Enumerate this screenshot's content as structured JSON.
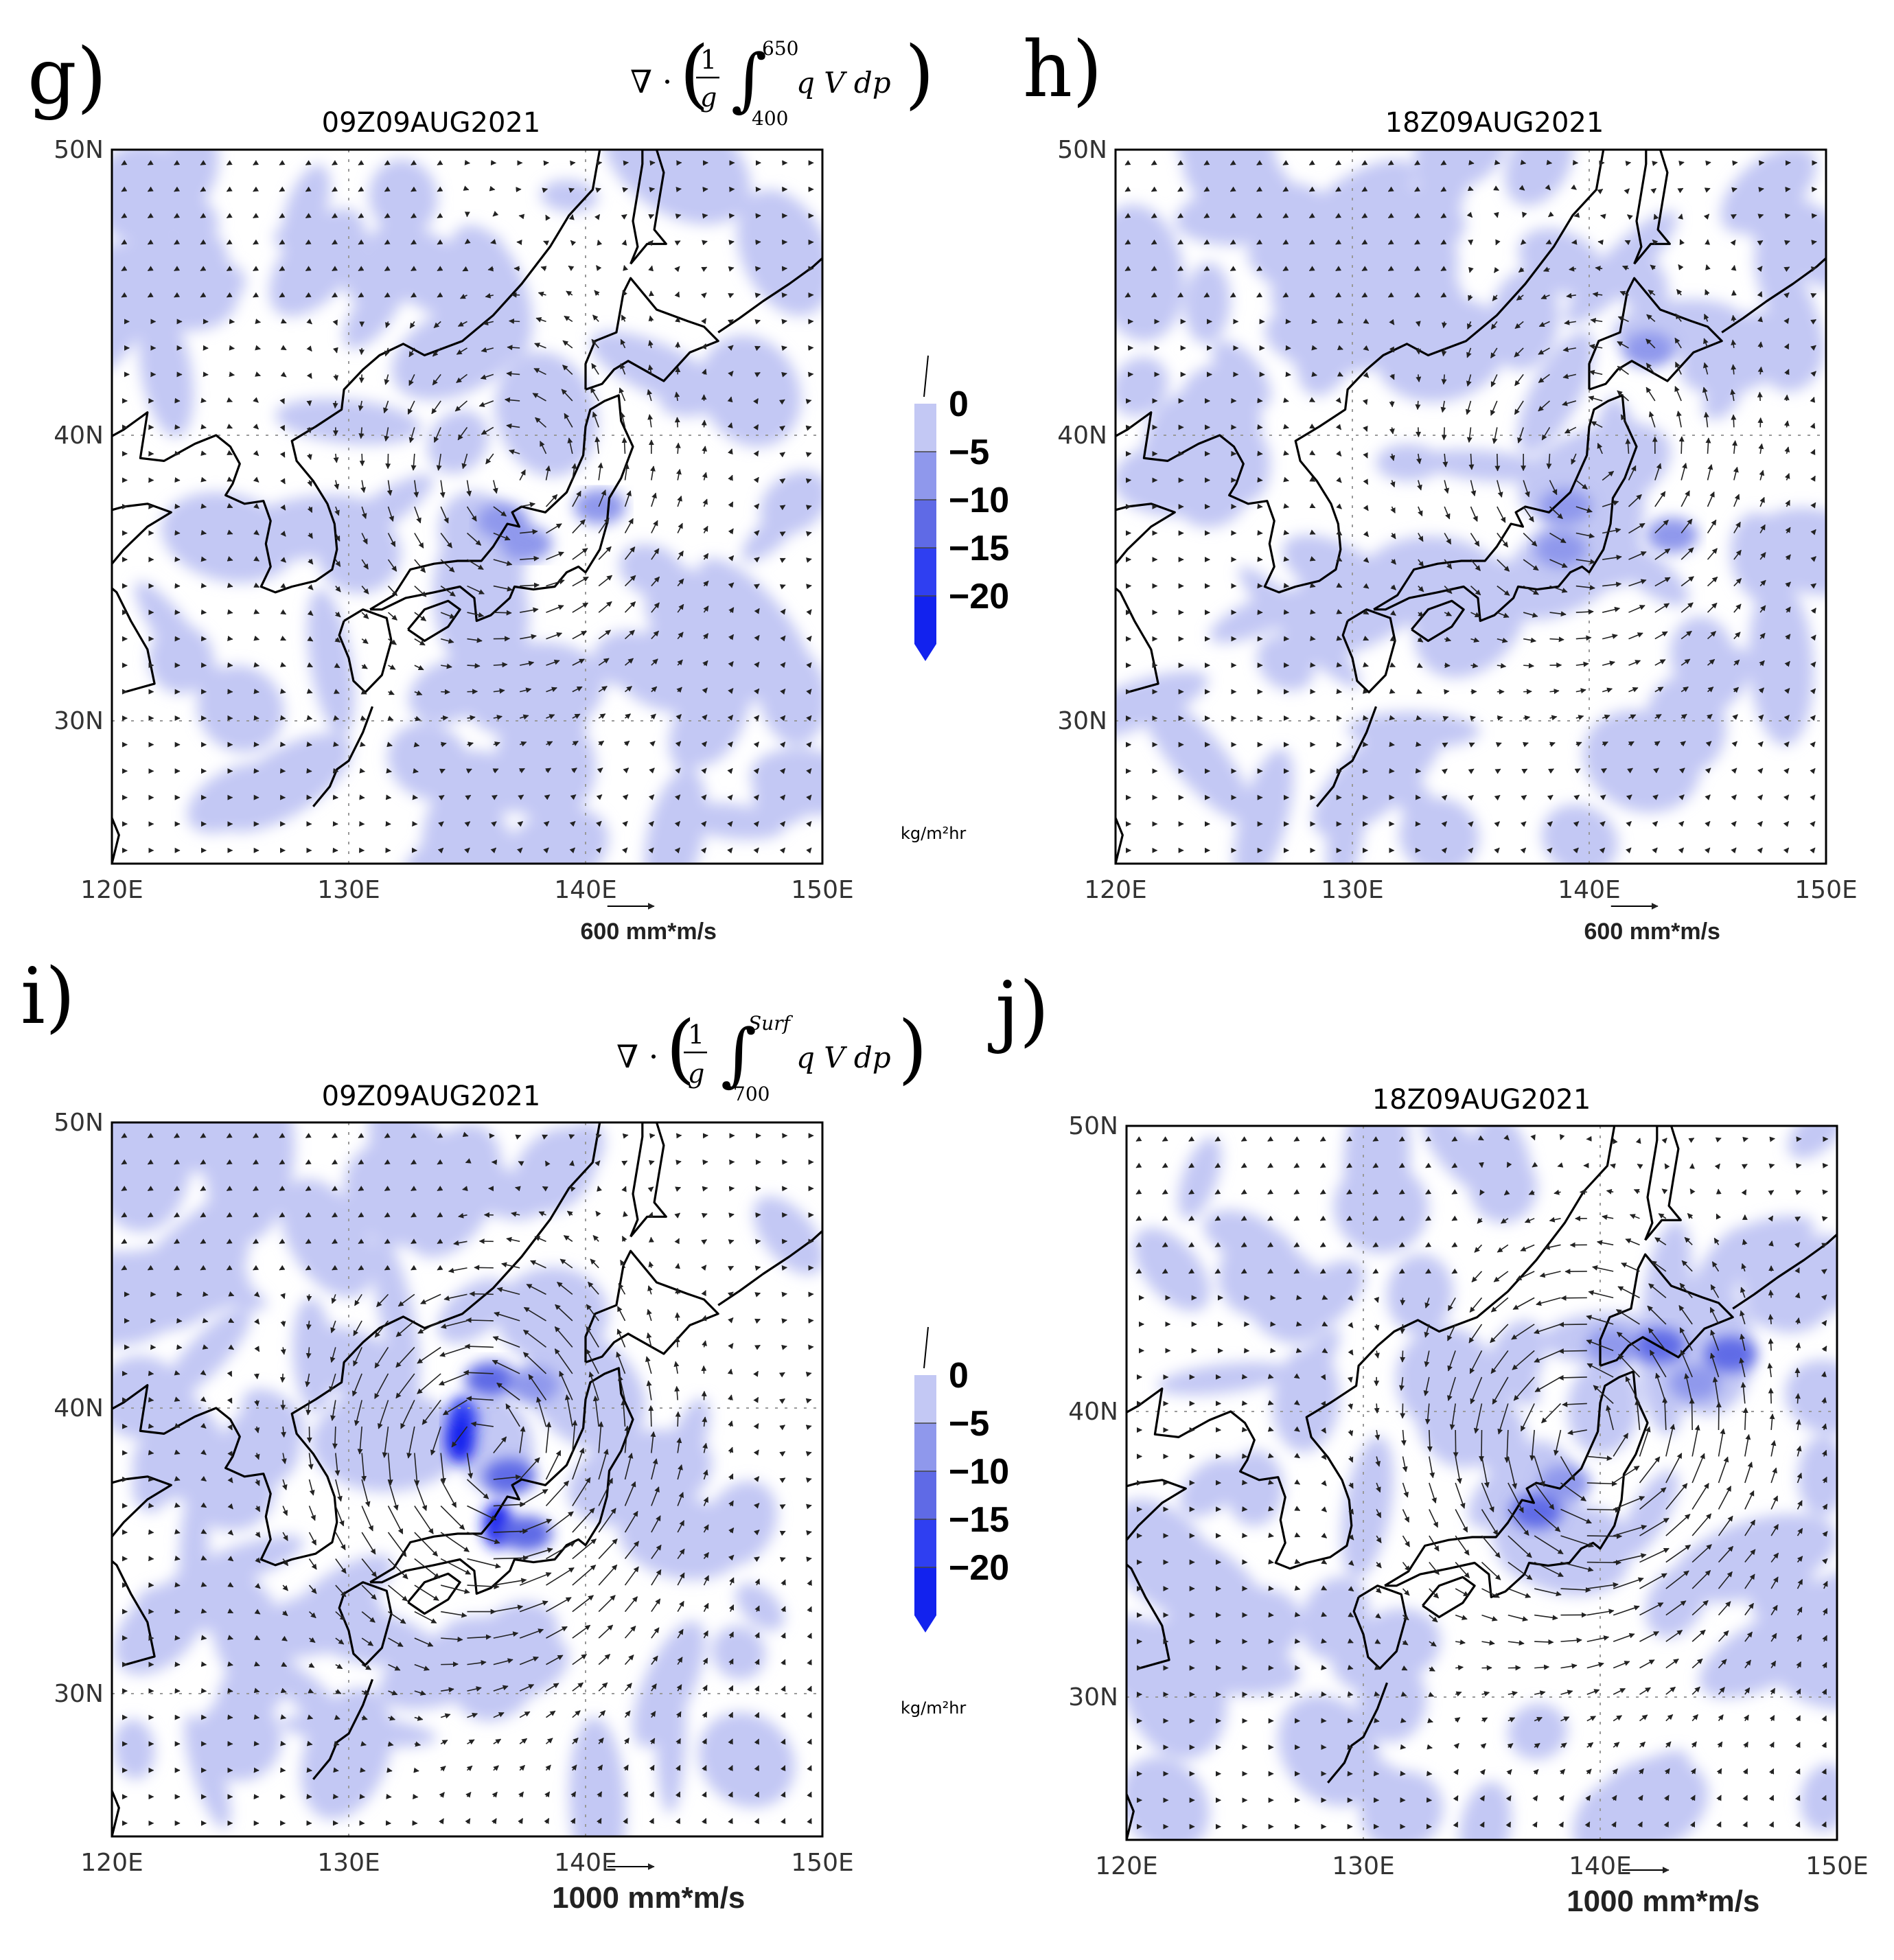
{
  "colors": {
    "c0": "#c3c8f4",
    "c5": "#8f98ec",
    "c10": "#5f6ae6",
    "c15": "#2f3ff1",
    "c20": "#1222ee",
    "arrow": "#222222"
  },
  "panels": [
    {
      "label": "g)",
      "title": "09Z09AUG2021",
      "x_ticks": [
        "120E",
        "130E",
        "140E",
        "150E"
      ],
      "y_ticks": [
        "50N",
        "40N",
        "30N"
      ],
      "ref_vector": "600 mm*m/s",
      "field": {
        "center_lon": 137.0,
        "center_lat": 38.5,
        "strength": 0.9
      },
      "shading": [
        {
          "lon": 136.5,
          "lat": 37.0,
          "level": -5
        },
        {
          "lon": 137.5,
          "lat": 36.2,
          "level": -5
        },
        {
          "lon": 140.6,
          "lat": 37.5,
          "level": -5
        }
      ]
    },
    {
      "label": "h)",
      "title": "18Z09AUG2021",
      "x_ticks": [
        "120E",
        "130E",
        "140E",
        "150E"
      ],
      "y_ticks": [
        "50N",
        "40N",
        "30N"
      ],
      "ref_vector": "600 mm*m/s",
      "field": {
        "center_lon": 140.0,
        "center_lat": 39.0,
        "strength": 0.9
      },
      "shading": [
        {
          "lon": 139.0,
          "lat": 37.5,
          "level": -5
        },
        {
          "lon": 138.8,
          "lat": 36.0,
          "level": -5
        },
        {
          "lon": 143.5,
          "lat": 36.5,
          "level": -5
        },
        {
          "lon": 142.5,
          "lat": 43.0,
          "level": -5
        }
      ]
    },
    {
      "label": "i)",
      "title": "09Z09AUG2021",
      "x_ticks": [
        "120E",
        "130E",
        "140E",
        "150E"
      ],
      "y_ticks": [
        "50N",
        "40N",
        "30N"
      ],
      "ref_vector": "1000 mm*m/s",
      "field": {
        "center_lon": 136.0,
        "center_lat": 38.5,
        "strength": 1.7
      },
      "shading": [
        {
          "lon": 136.0,
          "lat": 41.0,
          "level": -10
        },
        {
          "lon": 134.8,
          "lat": 39.6,
          "level": -15
        },
        {
          "lon": 134.7,
          "lat": 38.9,
          "level": -20
        },
        {
          "lon": 136.3,
          "lat": 35.9,
          "level": -20
        },
        {
          "lon": 136.8,
          "lat": 37.6,
          "level": -10
        },
        {
          "lon": 137.5,
          "lat": 35.6,
          "level": -10
        },
        {
          "lon": 137.8,
          "lat": 40.8,
          "level": -5
        }
      ]
    },
    {
      "label": "j)",
      "title": "18Z09AUG2021",
      "x_ticks": [
        "120E",
        "130E",
        "140E",
        "150E"
      ],
      "y_ticks": [
        "50N",
        "40N",
        "30N"
      ],
      "ref_vector": "1000 mm*m/s",
      "field": {
        "center_lon": 139.5,
        "center_lat": 39.0,
        "strength": 1.7
      },
      "shading": [
        {
          "lon": 142.5,
          "lat": 42.3,
          "level": -10
        },
        {
          "lon": 145.5,
          "lat": 42.0,
          "level": -10
        },
        {
          "lon": 140.5,
          "lat": 42.3,
          "level": -5
        },
        {
          "lon": 137.3,
          "lat": 36.5,
          "level": -10
        },
        {
          "lon": 138.5,
          "lat": 37.5,
          "level": -5
        },
        {
          "lon": 144.0,
          "lat": 41.0,
          "level": -5
        }
      ]
    }
  ],
  "colorbars": [
    {
      "levels": [
        "0",
        "−5",
        "−10",
        "−15",
        "−20"
      ],
      "unit": "kg/m²hr"
    },
    {
      "levels": [
        "0",
        "−5",
        "−10",
        "−15",
        "−20"
      ],
      "unit": "kg/m²hr"
    }
  ],
  "equations": [
    {
      "op": "∇ ·",
      "frac_num": "1",
      "frac_den": "g",
      "upper": "650",
      "lower": "400",
      "body": "q V dp"
    },
    {
      "op": "∇ ·",
      "frac_num": "1",
      "frac_den": "g",
      "upper": "Surf",
      "lower": "700",
      "body": "q V dp"
    }
  ]
}
